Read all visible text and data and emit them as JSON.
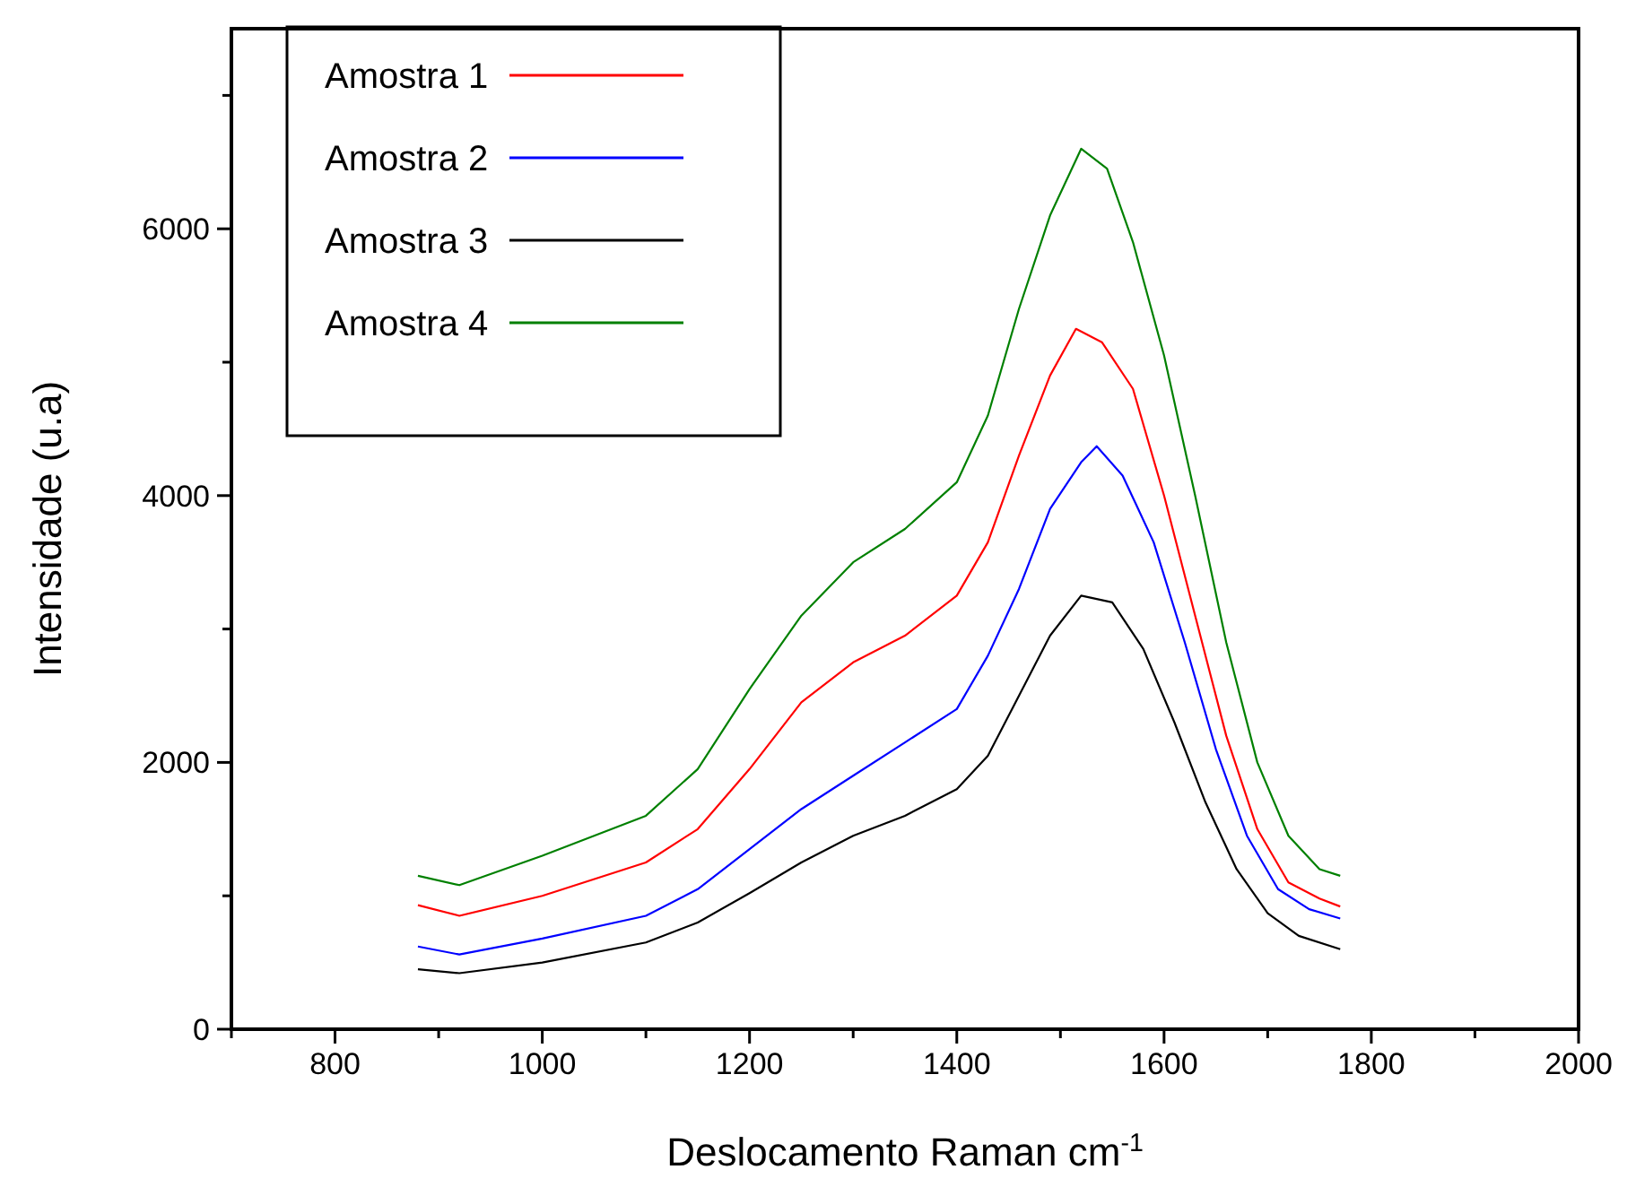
{
  "chart_data": {
    "type": "line",
    "xlabel": "Deslocamento Raman cm$^{-1}$",
    "ylabel": "Intensidade (u.a)",
    "xlim": [
      700,
      2000
    ],
    "ylim": [
      0,
      7500
    ],
    "xticks": [
      {
        "value": 700,
        "label": null
      },
      800,
      {
        "value": 900,
        "label": null
      },
      1000,
      {
        "value": 1100,
        "label": null
      },
      1200,
      {
        "value": 1300,
        "label": null
      },
      1400,
      {
        "value": 1500,
        "label": null
      },
      1600,
      {
        "value": 1700,
        "label": null
      },
      1800,
      {
        "value": 1900,
        "label": null
      },
      2000
    ],
    "yticks": [
      0,
      {
        "value": 1000,
        "label": null
      },
      2000,
      {
        "value": 3000,
        "label": null
      },
      4000,
      {
        "value": 5000,
        "label": null
      },
      6000,
      {
        "value": 7000,
        "label": null
      }
    ],
    "legend": "top left",
    "grid": false,
    "line_style": "solid",
    "marker": "none",
    "series": [
      {
        "name": "Amostra 1",
        "color": "#ff0000",
        "x": [
          880,
          920,
          1000,
          1100,
          1150,
          1200,
          1250,
          1300,
          1350,
          1400,
          1430,
          1460,
          1490,
          1515,
          1540,
          1570,
          1600,
          1630,
          1660,
          1690,
          1720,
          1750,
          1770
        ],
        "values": [
          930,
          850,
          1000,
          1250,
          1500,
          1950,
          2450,
          2750,
          2950,
          3250,
          3650,
          4300,
          4900,
          5250,
          5150,
          4800,
          4000,
          3100,
          2200,
          1500,
          1100,
          980,
          920
        ]
      },
      {
        "name": "Amostra 2",
        "color": "#0000ff",
        "x": [
          880,
          920,
          1000,
          1100,
          1150,
          1200,
          1250,
          1300,
          1350,
          1400,
          1430,
          1460,
          1490,
          1520,
          1535,
          1560,
          1590,
          1620,
          1650,
          1680,
          1710,
          1740,
          1770
        ],
        "values": [
          620,
          560,
          680,
          850,
          1050,
          1350,
          1650,
          1900,
          2150,
          2400,
          2800,
          3300,
          3900,
          4250,
          4370,
          4150,
          3650,
          2900,
          2100,
          1450,
          1050,
          900,
          830
        ]
      },
      {
        "name": "Amostra 3",
        "color": "#000000",
        "x": [
          880,
          920,
          1000,
          1100,
          1150,
          1200,
          1250,
          1300,
          1350,
          1400,
          1430,
          1460,
          1490,
          1520,
          1550,
          1580,
          1610,
          1640,
          1670,
          1700,
          1730,
          1770
        ],
        "values": [
          450,
          420,
          500,
          650,
          800,
          1020,
          1250,
          1450,
          1600,
          1800,
          2050,
          2500,
          2950,
          3250,
          3200,
          2850,
          2300,
          1700,
          1200,
          870,
          700,
          600
        ]
      },
      {
        "name": "Amostra 4",
        "color": "#008000",
        "x": [
          880,
          920,
          1000,
          1100,
          1150,
          1200,
          1250,
          1300,
          1350,
          1400,
          1430,
          1460,
          1490,
          1520,
          1545,
          1570,
          1600,
          1630,
          1660,
          1690,
          1720,
          1750,
          1770
        ],
        "values": [
          1150,
          1080,
          1300,
          1600,
          1950,
          2550,
          3100,
          3500,
          3750,
          4100,
          4600,
          5400,
          6100,
          6600,
          6450,
          5900,
          5050,
          4000,
          2900,
          2000,
          1450,
          1200,
          1150
        ]
      }
    ]
  }
}
